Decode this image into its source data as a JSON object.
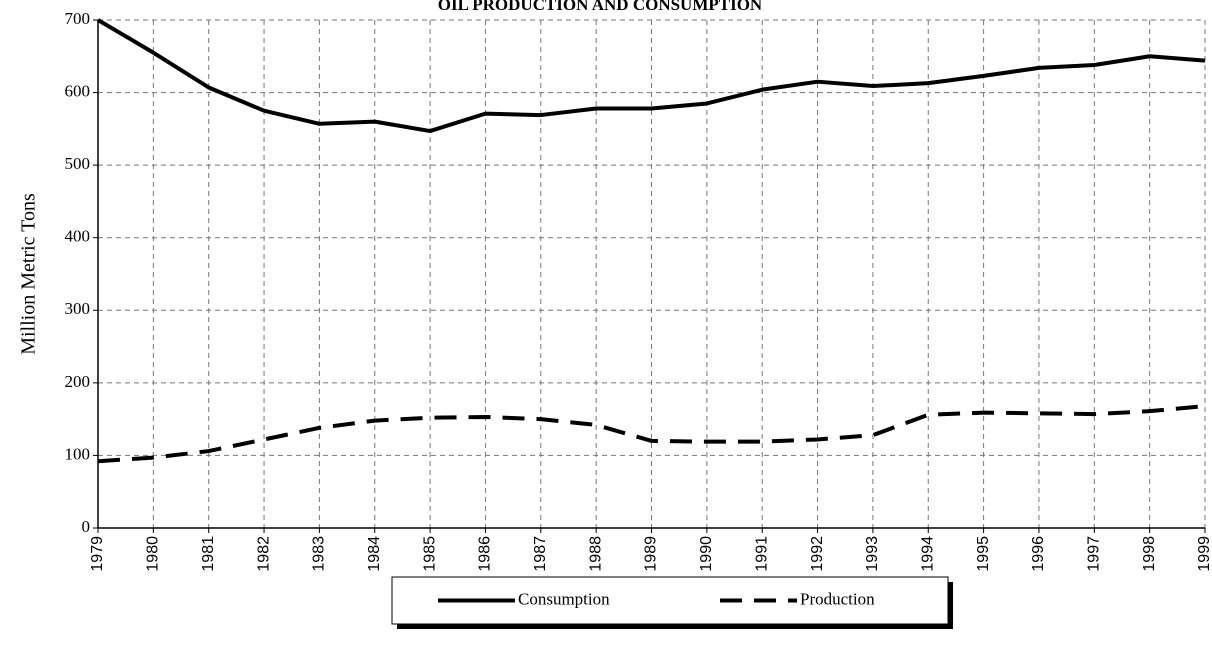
{
  "chart_data": {
    "type": "line",
    "title": "OIL PRODUCTION AND CONSUMPTION",
    "y_label": "Million Metric Tons",
    "categories": [
      "1979",
      "1980",
      "1981",
      "1982",
      "1983",
      "1984",
      "1985",
      "1986",
      "1987",
      "1988",
      "1989",
      "1990",
      "1991",
      "1992",
      "1993",
      "1994",
      "1995",
      "1996",
      "1997",
      "1998",
      "1999"
    ],
    "series": [
      {
        "name": "Consumption",
        "color": "#000000",
        "dash": "solid",
        "values": [
          700,
          655,
          607,
          575,
          557,
          560,
          547,
          571,
          569,
          578,
          578,
          585,
          604,
          615,
          609,
          613,
          623,
          634,
          638,
          650,
          644
        ]
      },
      {
        "name": "Production",
        "color": "#000000",
        "dash": "dashed",
        "values": [
          92,
          97,
          106,
          122,
          138,
          148,
          152,
          153,
          150,
          142,
          120,
          119,
          119,
          122,
          128,
          156,
          159,
          158,
          157,
          161,
          168
        ]
      }
    ],
    "ylim": [
      0,
      700
    ],
    "yticks": [
      0,
      100,
      200,
      300,
      400,
      500,
      600,
      700
    ],
    "grid": true,
    "legend": "bottom"
  }
}
